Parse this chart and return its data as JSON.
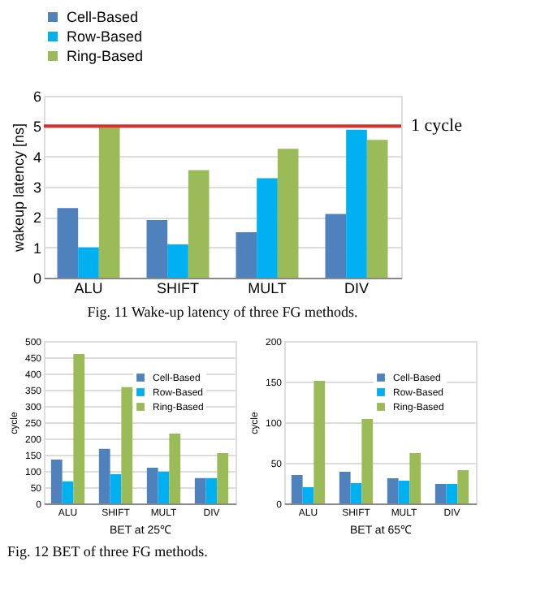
{
  "chart_data": [
    {
      "type": "bar",
      "categories": [
        "ALU",
        "SHIFT",
        "MULT",
        "DIV"
      ],
      "ylabel": "wakeup latency [ns]",
      "ylim": [
        0,
        6
      ],
      "yticks": [
        0,
        1,
        2,
        3,
        4,
        5,
        6
      ],
      "grid": "y",
      "legend": "top",
      "series": [
        {
          "name": "Cell-Based",
          "color": "#4f81bd",
          "values": [
            2.3,
            1.9,
            1.5,
            2.1
          ]
        },
        {
          "name": "Row-Based",
          "color": "#00b0f0",
          "values": [
            1.0,
            1.1,
            3.28,
            4.88
          ]
        },
        {
          "name": "Ring-Based",
          "color": "#9bbb59",
          "values": [
            5.0,
            3.55,
            4.25,
            4.55
          ]
        }
      ],
      "ref_lines": [
        {
          "axis": "y",
          "value": 5,
          "label": "1 cycle",
          "color": "#d9302c"
        }
      ],
      "annotations": [
        "Fig. 11      Wake-up latency of three FG methods."
      ]
    },
    {
      "type": "bar",
      "categories": [
        "ALU",
        "SHIFT",
        "MULT",
        "DIV"
      ],
      "xlabel": "BET at 25℃",
      "ylabel": "cycle",
      "ylim": [
        0,
        500
      ],
      "yticks": [
        0,
        50,
        100,
        150,
        200,
        250,
        300,
        350,
        400,
        450,
        500
      ],
      "grid": "y",
      "legend": "top right",
      "series": [
        {
          "name": "Cell-Based",
          "color": "#4f81bd",
          "values": [
            135,
            168,
            110,
            78
          ]
        },
        {
          "name": "Row-Based",
          "color": "#00b0f0",
          "values": [
            68,
            90,
            98,
            78
          ]
        },
        {
          "name": "Ring-Based",
          "color": "#9bbb59",
          "values": [
            460,
            358,
            215,
            155
          ]
        }
      ],
      "annotations": [
        "Fig. 12      BET of three FG methods."
      ]
    },
    {
      "type": "bar",
      "categories": [
        "ALU",
        "SHIFT",
        "MULT",
        "DIV"
      ],
      "xlabel": "BET at 65℃",
      "ylabel": "cycle",
      "ylim": [
        0,
        200
      ],
      "yticks": [
        0,
        50,
        100,
        150,
        200
      ],
      "grid": "y",
      "legend": "top right",
      "series": [
        {
          "name": "Cell-Based",
          "color": "#4f81bd",
          "values": [
            35,
            39,
            31,
            24
          ]
        },
        {
          "name": "Row-Based",
          "color": "#00b0f0",
          "values": [
            20,
            25,
            28,
            24
          ]
        },
        {
          "name": "Ring-Based",
          "color": "#9bbb59",
          "values": [
            151,
            104,
            62,
            41
          ]
        }
      ]
    }
  ]
}
